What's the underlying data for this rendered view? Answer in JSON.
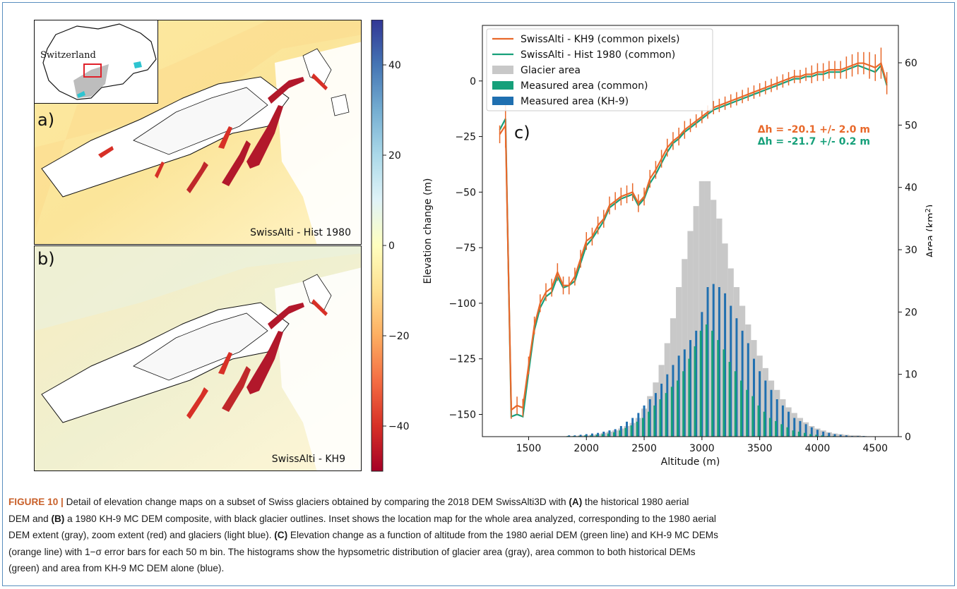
{
  "panel_a": {
    "letter": "a)",
    "caption": "SwissAlti - Hist 1980"
  },
  "panel_b": {
    "letter": "b)",
    "caption": "SwissAlti - KH9"
  },
  "inset": {
    "label": "Switzerland"
  },
  "colorbar": {
    "ticks": [
      40,
      20,
      0,
      -20,
      -40
    ],
    "tick_labels": [
      "40",
      "20",
      "0",
      "−20",
      "−40"
    ],
    "range": [
      -50,
      50
    ],
    "colormap": [
      "#a50026",
      "#d73027",
      "#f46d43",
      "#fdae61",
      "#fee090",
      "#ffffbf",
      "#e0f3f8",
      "#abd9e9",
      "#74add1",
      "#4575b4",
      "#313695"
    ]
  },
  "chart_data": {
    "type": "line",
    "panel_label": "c)",
    "xlabel": "Altitude (m)",
    "ylabel": "Elevation change (m)",
    "y2label": "Area (km²)",
    "xlim": [
      1100,
      4700
    ],
    "ylim": [
      -160,
      25
    ],
    "y2lim": [
      0,
      66
    ],
    "xticks": [
      1500,
      2000,
      2500,
      3000,
      3500,
      4000,
      4500
    ],
    "yticks": [
      0,
      -25,
      -50,
      -75,
      -100,
      -125,
      -150
    ],
    "ytick_labels": [
      "0",
      "−25",
      "−50",
      "−75",
      "−100",
      "−125",
      "−150"
    ],
    "y2ticks": [
      0,
      10,
      20,
      30,
      40,
      50,
      60
    ],
    "legend": [
      "SwissAlti - KH9 (common pixels)",
      "SwissAlti - Hist 1980 (common)",
      "Glacier area",
      "Measured area (common)",
      "Measured area (KH-9)"
    ],
    "colors": {
      "kh9": "#e8682a",
      "hist": "#16a07a",
      "glacier": "#c8c8c8",
      "common": "#16a07a",
      "kh9_area": "#1f6fb0"
    },
    "annotations": [
      "Δh = -20.1 +/- 2.0 m",
      "Δh = -21.7 +/- 0.2 m"
    ],
    "bin_width": 50,
    "x": [
      1250,
      1300,
      1350,
      1400,
      1450,
      1500,
      1550,
      1600,
      1650,
      1700,
      1750,
      1800,
      1850,
      1900,
      1950,
      2000,
      2050,
      2100,
      2150,
      2200,
      2250,
      2300,
      2350,
      2400,
      2450,
      2500,
      2550,
      2600,
      2650,
      2700,
      2750,
      2800,
      2850,
      2900,
      2950,
      3000,
      3050,
      3100,
      3150,
      3200,
      3250,
      3300,
      3350,
      3400,
      3450,
      3500,
      3550,
      3600,
      3650,
      3700,
      3750,
      3800,
      3850,
      3900,
      3950,
      4000,
      4050,
      4100,
      4150,
      4200,
      4250,
      4300,
      4350,
      4400,
      4450,
      4500,
      4550,
      4600
    ],
    "series": [
      {
        "name": "SwissAlti - KH9 (common pixels)",
        "values": [
          -24,
          -20,
          -148,
          -146,
          -147,
          -128,
          -110,
          -100,
          -95,
          -93,
          -86,
          -92,
          -92,
          -88,
          -80,
          -72,
          -70,
          -65,
          -62,
          -56,
          -54,
          -52,
          -51,
          -50,
          -55,
          -52,
          -44,
          -40,
          -35,
          -30,
          -27,
          -25,
          -22,
          -20,
          -18,
          -16,
          -14,
          -12,
          -11,
          -10,
          -9,
          -8,
          -7,
          -6,
          -5,
          -4,
          -3,
          -2,
          -1,
          0,
          1,
          2,
          2,
          3,
          3,
          4,
          4,
          5,
          5,
          5,
          6,
          7,
          8,
          8,
          7,
          6,
          8,
          -1
        ],
        "errors": [
          4,
          10,
          4,
          4,
          4,
          4,
          4,
          4,
          4,
          4,
          4,
          4,
          4,
          4,
          4,
          4,
          4,
          4,
          4,
          4,
          4,
          4,
          4,
          4,
          4,
          4,
          4,
          4,
          4,
          4,
          4,
          4,
          4,
          3,
          3,
          3,
          3,
          3,
          3,
          3,
          3,
          3,
          3,
          3,
          3,
          3,
          3,
          3,
          3,
          3,
          3,
          3,
          3,
          3,
          4,
          4,
          4,
          4,
          4,
          4,
          5,
          5,
          5,
          5,
          6,
          6,
          7,
          5
        ]
      },
      {
        "name": "SwissAlti - Hist 1980 (common)",
        "values": [
          -22,
          -17,
          -151,
          -150,
          -151,
          -131,
          -112,
          -102,
          -97,
          -95,
          -88,
          -93,
          -92,
          -90,
          -82,
          -74,
          -71,
          -67,
          -63,
          -57,
          -55,
          -53,
          -52,
          -51,
          -56,
          -53,
          -46,
          -42,
          -37,
          -32,
          -28,
          -26,
          -23,
          -21,
          -19,
          -17,
          -15,
          -13,
          -12,
          -11,
          -10,
          -9,
          -8,
          -7,
          -6,
          -5,
          -4,
          -3,
          -2,
          -1,
          0,
          1,
          1,
          2,
          2,
          3,
          3,
          4,
          4,
          4,
          5,
          6,
          7,
          6,
          5,
          4,
          7,
          -2
        ]
      }
    ],
    "glacier_area": [
      0,
      0,
      0,
      0,
      0,
      0,
      0,
      0,
      0,
      0,
      0,
      0,
      0.1,
      0.1,
      0.2,
      0.2,
      0.3,
      0.4,
      0.6,
      0.8,
      1,
      1.3,
      1.7,
      2.2,
      3.0,
      4.5,
      6.5,
      8.7,
      11.5,
      15,
      19,
      24,
      28.5,
      33,
      37,
      41,
      41,
      38,
      35,
      31,
      27,
      24,
      21,
      18,
      15.5,
      13,
      11,
      9,
      7.5,
      6,
      4.7,
      3.8,
      3,
      2.3,
      1.7,
      1.3,
      1,
      0.7,
      0.5,
      0.4,
      0.3,
      0.2,
      0.2,
      0.1,
      0,
      0,
      0,
      0
    ],
    "common_area": [
      0,
      0,
      0,
      0,
      0,
      0,
      0,
      0,
      0,
      0,
      0,
      0,
      0.1,
      0.1,
      0.1,
      0.2,
      0.2,
      0.3,
      0.4,
      0.5,
      0.7,
      1,
      1.4,
      1.8,
      2.4,
      3,
      4,
      5,
      6,
      7,
      8,
      9,
      10.5,
      12.5,
      14.5,
      17,
      18,
      17,
      15.5,
      14,
      12,
      10.5,
      9,
      7.5,
      6.5,
      5,
      4,
      3,
      2.5,
      2,
      1.5,
      1,
      0.8,
      0.6,
      0.4,
      0.3,
      0.2,
      0.1,
      0.1,
      0,
      0,
      0,
      0,
      0,
      0,
      0,
      0,
      0
    ],
    "kh9_area": [
      0,
      0,
      0,
      0,
      0,
      0,
      0,
      0,
      0,
      0,
      0,
      0,
      0.2,
      0.2,
      0.3,
      0.4,
      0.5,
      0.6,
      0.8,
      1,
      1.2,
      1.7,
      2.4,
      3,
      3.8,
      5,
      6,
      7,
      8.5,
      10,
      11.5,
      13,
      14,
      15.5,
      17,
      20,
      24,
      24.5,
      24,
      23,
      21,
      19,
      17,
      15,
      12.5,
      10.5,
      9,
      7.5,
      6,
      5,
      4,
      3,
      2.5,
      2,
      1.5,
      1.1,
      0.8,
      0.6,
      0.4,
      0.3,
      0.2,
      0.1,
      0.1,
      0.1,
      0,
      0,
      0,
      0
    ]
  },
  "caption": {
    "fig_label": "FIGURE 10 |",
    "line1": " Detail of elevation change maps on a subset of Swiss glaciers obtained by comparing the 2018 DEM SwissAlti3D with ",
    "bold_a": "(A)",
    "line1b": " the historical 1980 aerial",
    "line2a": "DEM and ",
    "bold_b": "(B)",
    "line2b": " a 1980 KH-9 MC DEM composite, with black glacier outlines. Inset shows the location map for the whole area analyzed, corresponding to the 1980 aerial",
    "line3": "DEM extent (gray), zoom extent (red) and glaciers (light blue). ",
    "bold_c": "(C)",
    "line3b": " Elevation change as a function of altitude from the 1980 aerial DEM (green line) and KH-9 MC DEMs",
    "line4": "(orange line) with 1−σ error bars for each 50 m bin. The histograms show the hypsometric distribution of glacier area (gray), area common to both historical DEMs",
    "line5": "(green) and area from KH-9 MC DEM alone (blue)."
  }
}
